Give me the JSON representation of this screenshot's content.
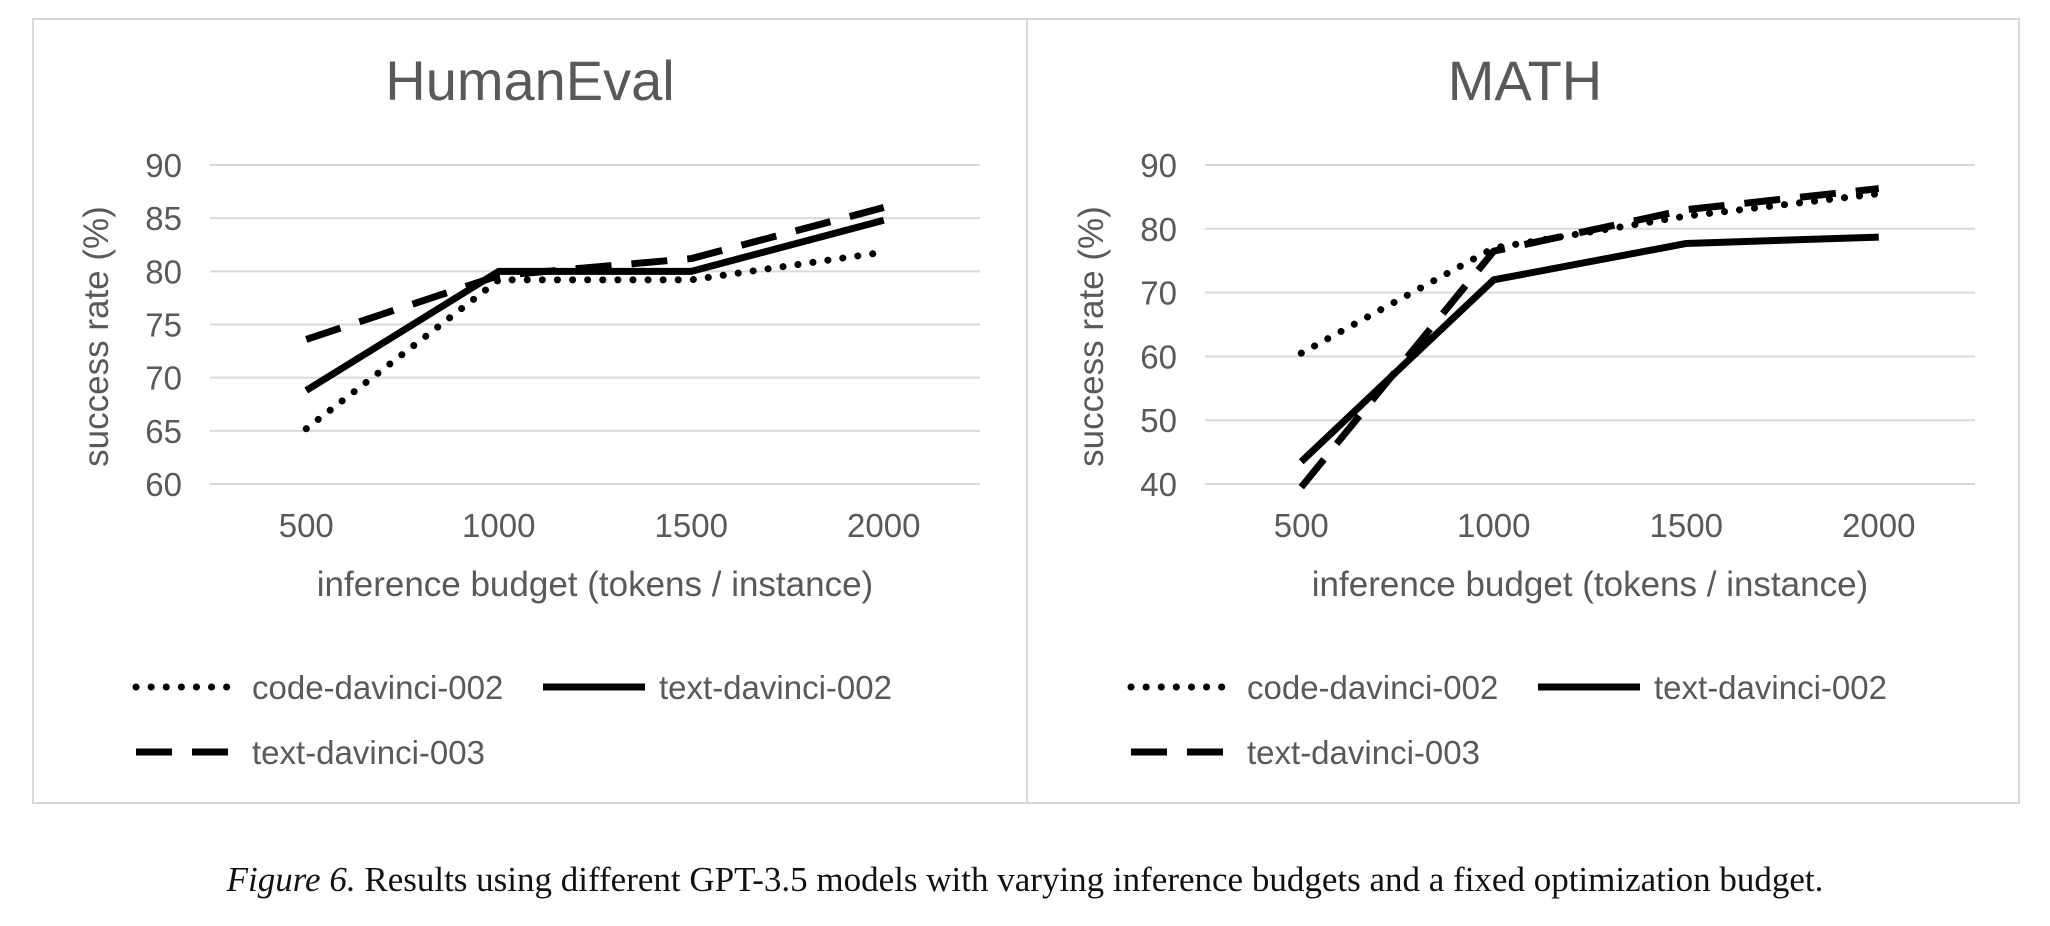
{
  "chart_data": [
    {
      "type": "line",
      "title": "HumanEval",
      "xlabel": "inference budget (tokens / instance)",
      "ylabel": "success rate (%)",
      "categories": [
        "500",
        "1000",
        "1500",
        "2000"
      ],
      "ylim": [
        60,
        90
      ],
      "yticks": [
        60,
        65,
        70,
        75,
        80,
        85,
        90
      ],
      "grid": true,
      "legend_position": "bottom",
      "series": [
        {
          "name": "code-davinci-002",
          "style": "dotted",
          "values": [
            65.2,
            79.2,
            79.2,
            81.8
          ]
        },
        {
          "name": "text-davinci-002",
          "style": "solid",
          "values": [
            68.8,
            80.0,
            80.0,
            84.8
          ]
        },
        {
          "name": "text-davinci-003",
          "style": "dashed",
          "values": [
            73.6,
            79.6,
            81.2,
            86.0
          ]
        }
      ]
    },
    {
      "type": "line",
      "title": "MATH",
      "xlabel": "inference budget (tokens / instance)",
      "ylabel": "success rate (%)",
      "categories": [
        "500",
        "1000",
        "1500",
        "2000"
      ],
      "ylim": [
        40,
        90
      ],
      "yticks": [
        40,
        50,
        60,
        70,
        80,
        90
      ],
      "grid": true,
      "legend_position": "bottom",
      "series": [
        {
          "name": "code-davinci-002",
          "style": "dotted",
          "values": [
            60.5,
            77.0,
            82.0,
            85.5
          ]
        },
        {
          "name": "text-davinci-002",
          "style": "solid",
          "values": [
            43.5,
            72.0,
            77.7,
            78.7
          ]
        },
        {
          "name": "text-davinci-003",
          "style": "dashed",
          "values": [
            39.5,
            76.5,
            83.0,
            86.3
          ]
        }
      ]
    }
  ],
  "caption": {
    "label": "Figure 6.",
    "text": " Results using different GPT-3.5 models with varying inference budgets and a fixed optimization budget."
  },
  "colors": {
    "text": "#595959",
    "grid": "#d9d9d9",
    "line": "#000000",
    "border": "#d9d9d9"
  }
}
